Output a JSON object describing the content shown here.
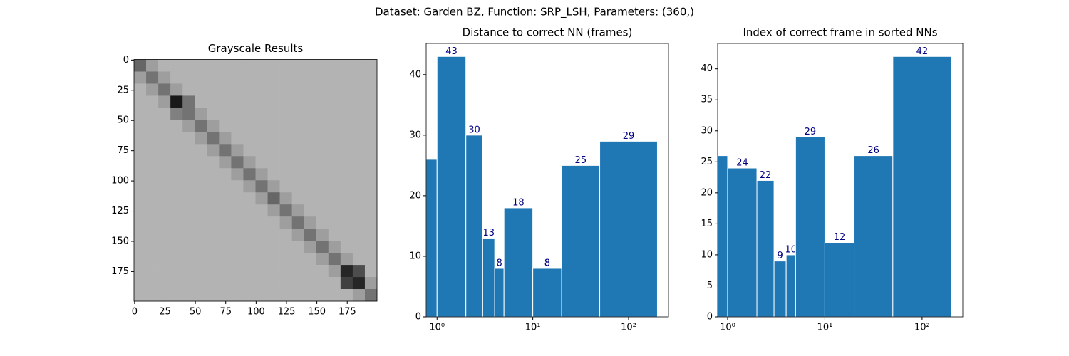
{
  "title": "Dataset:  Garden BZ,  Function:  SRP_LSH, Parameters: (360,)",
  "chart_data": [
    {
      "type": "heatmap",
      "title": "Grayscale Results",
      "colormap": "gray_r",
      "xlim": [
        -0.5,
        199.5
      ],
      "ylim": [
        199.5,
        -0.5
      ],
      "xticks": [
        0,
        25,
        50,
        75,
        100,
        125,
        150,
        175
      ],
      "yticks": [
        0,
        25,
        50,
        75,
        100,
        125,
        150,
        175
      ],
      "values": [
        [
          0.6,
          0.38,
          0.3,
          0.3,
          0.3,
          0.3,
          0.3,
          0.3,
          0.3,
          0.3,
          0.3,
          0.3,
          0.3,
          0.3,
          0.3,
          0.3,
          0.3,
          0.3,
          0.3,
          0.3
        ],
        [
          0.38,
          0.55,
          0.38,
          0.3,
          0.3,
          0.3,
          0.3,
          0.3,
          0.3,
          0.3,
          0.3,
          0.3,
          0.3,
          0.3,
          0.3,
          0.3,
          0.3,
          0.3,
          0.3,
          0.3
        ],
        [
          0.3,
          0.38,
          0.55,
          0.38,
          0.3,
          0.3,
          0.3,
          0.3,
          0.3,
          0.3,
          0.3,
          0.3,
          0.3,
          0.3,
          0.3,
          0.3,
          0.3,
          0.3,
          0.3,
          0.3
        ],
        [
          0.3,
          0.3,
          0.38,
          0.9,
          0.55,
          0.3,
          0.3,
          0.3,
          0.3,
          0.3,
          0.3,
          0.3,
          0.3,
          0.3,
          0.3,
          0.3,
          0.3,
          0.3,
          0.3,
          0.3
        ],
        [
          0.3,
          0.3,
          0.3,
          0.5,
          0.55,
          0.38,
          0.3,
          0.3,
          0.3,
          0.3,
          0.3,
          0.3,
          0.3,
          0.3,
          0.3,
          0.3,
          0.3,
          0.3,
          0.3,
          0.3
        ],
        [
          0.3,
          0.3,
          0.3,
          0.3,
          0.38,
          0.55,
          0.38,
          0.3,
          0.3,
          0.3,
          0.3,
          0.3,
          0.3,
          0.3,
          0.3,
          0.3,
          0.3,
          0.3,
          0.3,
          0.3
        ],
        [
          0.3,
          0.3,
          0.3,
          0.3,
          0.3,
          0.38,
          0.55,
          0.38,
          0.3,
          0.3,
          0.3,
          0.3,
          0.3,
          0.3,
          0.3,
          0.3,
          0.3,
          0.3,
          0.3,
          0.3
        ],
        [
          0.3,
          0.3,
          0.3,
          0.3,
          0.3,
          0.3,
          0.38,
          0.55,
          0.38,
          0.3,
          0.3,
          0.3,
          0.3,
          0.3,
          0.3,
          0.3,
          0.3,
          0.3,
          0.3,
          0.3
        ],
        [
          0.3,
          0.3,
          0.3,
          0.3,
          0.3,
          0.3,
          0.3,
          0.38,
          0.55,
          0.38,
          0.3,
          0.3,
          0.3,
          0.3,
          0.3,
          0.3,
          0.3,
          0.3,
          0.3,
          0.3
        ],
        [
          0.3,
          0.3,
          0.3,
          0.3,
          0.3,
          0.3,
          0.3,
          0.3,
          0.38,
          0.55,
          0.38,
          0.3,
          0.3,
          0.3,
          0.3,
          0.3,
          0.3,
          0.3,
          0.3,
          0.3
        ],
        [
          0.3,
          0.3,
          0.3,
          0.3,
          0.3,
          0.3,
          0.3,
          0.3,
          0.3,
          0.38,
          0.55,
          0.38,
          0.3,
          0.3,
          0.3,
          0.3,
          0.3,
          0.3,
          0.3,
          0.3
        ],
        [
          0.3,
          0.3,
          0.3,
          0.3,
          0.3,
          0.3,
          0.3,
          0.3,
          0.3,
          0.3,
          0.38,
          0.6,
          0.38,
          0.3,
          0.3,
          0.3,
          0.3,
          0.3,
          0.3,
          0.3
        ],
        [
          0.3,
          0.3,
          0.3,
          0.3,
          0.3,
          0.3,
          0.3,
          0.3,
          0.3,
          0.3,
          0.3,
          0.38,
          0.55,
          0.38,
          0.3,
          0.3,
          0.3,
          0.3,
          0.3,
          0.3
        ],
        [
          0.3,
          0.3,
          0.3,
          0.3,
          0.3,
          0.3,
          0.3,
          0.3,
          0.3,
          0.3,
          0.3,
          0.3,
          0.38,
          0.55,
          0.38,
          0.3,
          0.3,
          0.3,
          0.3,
          0.3
        ],
        [
          0.3,
          0.3,
          0.3,
          0.3,
          0.3,
          0.3,
          0.3,
          0.3,
          0.3,
          0.3,
          0.3,
          0.3,
          0.3,
          0.38,
          0.55,
          0.38,
          0.3,
          0.3,
          0.3,
          0.3
        ],
        [
          0.3,
          0.3,
          0.3,
          0.3,
          0.3,
          0.3,
          0.3,
          0.3,
          0.3,
          0.3,
          0.3,
          0.3,
          0.3,
          0.3,
          0.38,
          0.55,
          0.38,
          0.3,
          0.3,
          0.3
        ],
        [
          0.3,
          0.3,
          0.3,
          0.3,
          0.3,
          0.3,
          0.3,
          0.3,
          0.3,
          0.3,
          0.3,
          0.3,
          0.3,
          0.3,
          0.3,
          0.38,
          0.55,
          0.38,
          0.3,
          0.3
        ],
        [
          0.3,
          0.3,
          0.3,
          0.3,
          0.3,
          0.3,
          0.3,
          0.3,
          0.3,
          0.3,
          0.3,
          0.3,
          0.3,
          0.3,
          0.3,
          0.3,
          0.38,
          0.85,
          0.7,
          0.3
        ],
        [
          0.3,
          0.3,
          0.3,
          0.3,
          0.3,
          0.3,
          0.3,
          0.3,
          0.3,
          0.3,
          0.3,
          0.3,
          0.3,
          0.3,
          0.3,
          0.3,
          0.3,
          0.75,
          0.85,
          0.38
        ],
        [
          0.3,
          0.3,
          0.3,
          0.3,
          0.3,
          0.3,
          0.3,
          0.3,
          0.3,
          0.3,
          0.3,
          0.3,
          0.3,
          0.3,
          0.3,
          0.3,
          0.3,
          0.3,
          0.38,
          0.55
        ]
      ]
    },
    {
      "type": "histogram",
      "title": "Distance to correct NN (frames)",
      "xscale": "log",
      "bins": [
        0,
        1,
        2,
        3,
        4,
        5,
        10,
        20,
        50,
        200
      ],
      "values": [
        26,
        43,
        30,
        13,
        8,
        18,
        8,
        25,
        29
      ],
      "color": "#1f77b4",
      "edgecolor": "#ffffff",
      "label_color": "#000080",
      "xlim": [
        0.77,
        261
      ],
      "ylim": [
        0,
        45.15
      ],
      "xticks": [
        {
          "value": 1,
          "label": "10⁰"
        },
        {
          "value": 10,
          "label": "10¹"
        },
        {
          "value": 100,
          "label": "10²"
        }
      ],
      "yticks": [
        0,
        10,
        20,
        30,
        40
      ]
    },
    {
      "type": "histogram",
      "title": "Index of correct frame in sorted NNs",
      "xscale": "log",
      "bins": [
        0,
        1,
        2,
        3,
        4,
        5,
        10,
        20,
        50,
        200
      ],
      "values": [
        26,
        24,
        22,
        9,
        10,
        29,
        12,
        26,
        42
      ],
      "color": "#1f77b4",
      "edgecolor": "#ffffff",
      "label_color": "#000080",
      "xlim": [
        0.79,
        262
      ],
      "ylim": [
        0,
        44.1
      ],
      "xticks": [
        {
          "value": 1,
          "label": "10⁰"
        },
        {
          "value": 10,
          "label": "10¹"
        },
        {
          "value": 100,
          "label": "10²"
        }
      ],
      "yticks": [
        0,
        5,
        10,
        15,
        20,
        25,
        30,
        35,
        40
      ]
    }
  ]
}
